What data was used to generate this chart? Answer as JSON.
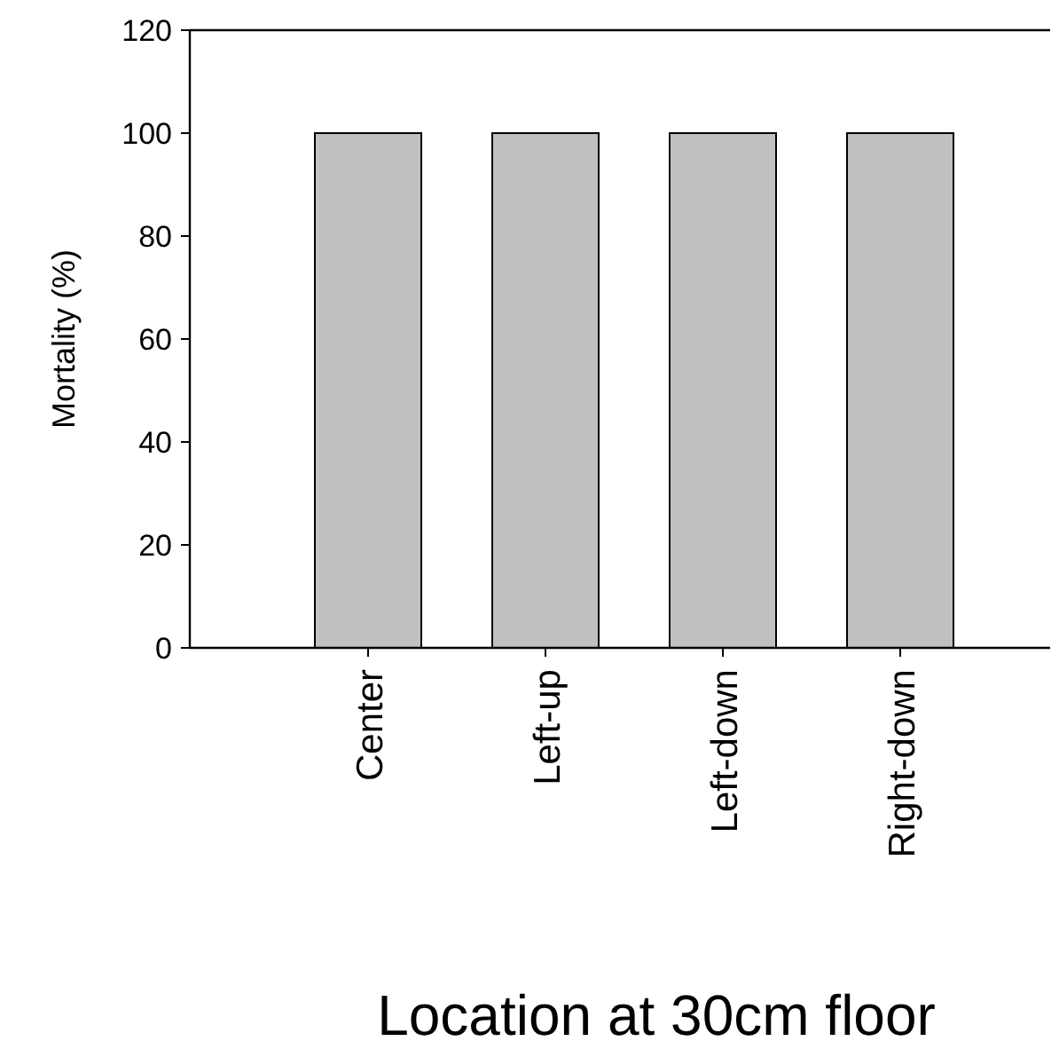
{
  "chart_data": {
    "type": "bar",
    "xlabel": "Location at 30cm floor",
    "ylabel": "Mortality (%)",
    "categories": [
      "Center",
      "Left-up",
      "Left-down",
      "Right-down"
    ],
    "values": [
      100,
      100,
      100,
      100
    ],
    "color": "#c0c0c0",
    "ylim": [
      0,
      120
    ],
    "yticks": [
      0,
      20,
      40,
      60,
      80,
      100,
      120
    ],
    "grid": false
  }
}
